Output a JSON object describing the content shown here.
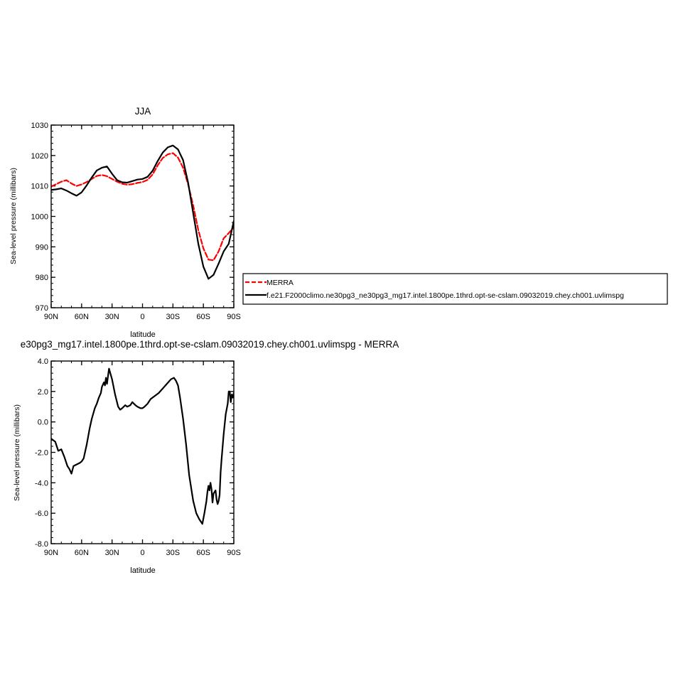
{
  "chart_data": [
    {
      "type": "line",
      "title": "JJA",
      "xlabel": "latitude",
      "ylabel": "Sea-level pressure (millibars)",
      "xlim": [
        90,
        -90
      ],
      "ylim": [
        970,
        1030
      ],
      "x_ticks": [
        90,
        60,
        30,
        0,
        -30,
        -60,
        -90
      ],
      "x_tick_labels": [
        "90N",
        "60N",
        "30N",
        "0",
        "30S",
        "60S",
        "90S"
      ],
      "y_ticks": [
        970,
        980,
        990,
        1000,
        1010,
        1020,
        1030
      ],
      "y_tick_labels": [
        "970",
        "980",
        "990",
        "1000",
        "1010",
        "1020",
        "1030"
      ],
      "legend": {
        "position": "right",
        "entries": [
          "MERRA",
          "f.e21.F2000climo.ne30pg3_ne30pg3_mg17.intel.1800pe.1thrd.opt-se-cslam.09032019.chey.ch001.uvlimspg"
        ]
      },
      "series": [
        {
          "name": "MERRA",
          "color": "#ff0000",
          "dash": true,
          "x": [
            90,
            85,
            80,
            75,
            70,
            65,
            60,
            55,
            50,
            45,
            40,
            35,
            30,
            25,
            20,
            15,
            10,
            5,
            0,
            -5,
            -10,
            -15,
            -20,
            -25,
            -30,
            -35,
            -40,
            -45,
            -50,
            -55,
            -60,
            -65,
            -70,
            -75,
            -80,
            -85,
            -90
          ],
          "values": [
            1009.8,
            1010.6,
            1011.4,
            1011.9,
            1010.8,
            1010.0,
            1010.5,
            1011.3,
            1012.3,
            1013.3,
            1013.6,
            1013.2,
            1012.3,
            1011.4,
            1010.7,
            1010.4,
            1010.6,
            1011.0,
            1011.3,
            1012.0,
            1013.8,
            1016.8,
            1019.2,
            1020.4,
            1020.8,
            1019.3,
            1016.0,
            1010.5,
            1003.5,
            995.5,
            989.5,
            985.8,
            985.6,
            988.5,
            992.8,
            994.5,
            996.5
          ]
        },
        {
          "name": "f.e21.F2000climo.ne30pg3_ne30pg3_mg17.intel.1800pe.1thrd.opt-se-cslam.09032019.chey.ch001.uvlimspg",
          "color": "#000000",
          "dash": false,
          "x": [
            90,
            85,
            80,
            75,
            70,
            65,
            60,
            55,
            50,
            45,
            40,
            35,
            30,
            25,
            20,
            15,
            10,
            5,
            0,
            -5,
            -10,
            -15,
            -20,
            -25,
            -30,
            -35,
            -40,
            -45,
            -50,
            -55,
            -60,
            -65,
            -70,
            -75,
            -80,
            -85,
            -90
          ],
          "values": [
            1008.7,
            1008.9,
            1009.2,
            1008.5,
            1007.6,
            1006.8,
            1007.9,
            1010.2,
            1012.8,
            1015.1,
            1016.0,
            1016.4,
            1014.0,
            1011.9,
            1011.2,
            1011.1,
            1011.6,
            1012.1,
            1012.3,
            1013.0,
            1015.0,
            1018.2,
            1021.0,
            1022.7,
            1023.3,
            1022.0,
            1018.5,
            1011.0,
            1001.0,
            991.0,
            983.5,
            979.5,
            980.8,
            984.5,
            988.5,
            991.0,
            998.5
          ]
        }
      ]
    },
    {
      "type": "line",
      "title": "e30pg3_mg17.intel.1800pe.1thrd.opt-se-cslam.09032019.chey.ch001.uvlimspg - MERRA",
      "xlabel": "latitude",
      "ylabel": "Sea-level pressure (millibars)",
      "xlim": [
        90,
        -90
      ],
      "ylim": [
        -8.0,
        4.0
      ],
      "x_ticks": [
        90,
        60,
        30,
        0,
        -30,
        -60,
        -90
      ],
      "x_tick_labels": [
        "90N",
        "60N",
        "30N",
        "0",
        "30S",
        "60S",
        "90S"
      ],
      "y_ticks": [
        -8,
        -6,
        -4,
        -2,
        0,
        2,
        4
      ],
      "y_tick_labels": [
        "-8.0",
        "-6.0",
        "-4.0",
        "-2.0",
        "0.0",
        "2.0",
        "4.0"
      ],
      "series": [
        {
          "color": "#000000",
          "x": [
            90,
            86,
            83,
            80,
            77,
            74,
            72,
            70,
            68,
            65,
            62,
            60,
            58,
            55,
            52,
            50,
            47,
            45,
            43,
            41,
            40,
            38,
            37,
            36,
            35,
            33,
            30,
            27,
            24,
            22,
            20,
            17,
            15,
            12,
            10,
            7,
            5,
            2,
            0,
            -2,
            -5,
            -8,
            -12,
            -16,
            -20,
            -24,
            -28,
            -31,
            -33,
            -35,
            -37,
            -40,
            -43,
            -46,
            -50,
            -53,
            -56,
            -59,
            -61,
            -63,
            -64,
            -65,
            -66,
            -67,
            -68,
            -69,
            -70,
            -71,
            -72,
            -73,
            -74,
            -75,
            -76,
            -77,
            -78,
            -80,
            -82,
            -84,
            -85,
            -86,
            -87,
            -88,
            -89,
            -90
          ],
          "values": [
            -1.1,
            -1.3,
            -1.9,
            -1.8,
            -2.3,
            -2.9,
            -3.1,
            -3.4,
            -2.9,
            -2.8,
            -2.7,
            -2.6,
            -2.4,
            -1.5,
            -0.4,
            0.2,
            0.9,
            1.2,
            1.6,
            1.9,
            2.3,
            2.6,
            2.4,
            2.9,
            2.5,
            3.5,
            2.8,
            1.8,
            1.0,
            0.8,
            0.9,
            1.1,
            1.0,
            1.1,
            1.3,
            1.1,
            1.0,
            0.9,
            0.9,
            1.0,
            1.2,
            1.5,
            1.7,
            1.9,
            2.2,
            2.5,
            2.8,
            2.9,
            2.7,
            2.4,
            1.6,
            0.2,
            -1.5,
            -3.5,
            -5.2,
            -6.0,
            -6.4,
            -6.7,
            -6.0,
            -5.2,
            -4.6,
            -4.2,
            -4.5,
            -4.0,
            -4.4,
            -5.3,
            -4.7,
            -4.6,
            -4.5,
            -5.1,
            -5.4,
            -5.2,
            -4.8,
            -3.3,
            -2.4,
            -0.8,
            0.5,
            1.2,
            2.0,
            2.0,
            1.3,
            1.8,
            1.6,
            1.9
          ]
        }
      ]
    }
  ]
}
